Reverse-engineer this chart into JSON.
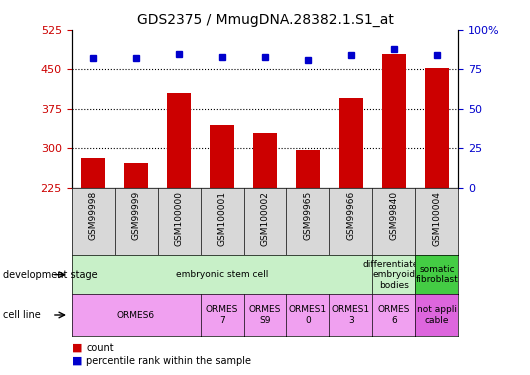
{
  "title": "GDS2375 / MmugDNA.28382.1.S1_at",
  "samples": [
    "GSM99998",
    "GSM99999",
    "GSM100000",
    "GSM100001",
    "GSM100002",
    "GSM99965",
    "GSM99966",
    "GSM99840",
    "GSM100004"
  ],
  "counts": [
    282,
    272,
    405,
    345,
    328,
    296,
    395,
    480,
    452
  ],
  "percentiles": [
    82,
    82,
    85,
    83,
    83,
    81,
    84,
    88,
    84
  ],
  "ylim_left": [
    225,
    525
  ],
  "ylim_right": [
    0,
    100
  ],
  "yticks_left": [
    225,
    300,
    375,
    450,
    525
  ],
  "yticks_right": [
    0,
    25,
    50,
    75,
    100
  ],
  "ytick_labels_right": [
    "0",
    "25",
    "50",
    "75",
    "100%"
  ],
  "bar_color": "#cc0000",
  "dot_color": "#0000cc",
  "grid_yticks": [
    300,
    375,
    450
  ],
  "dev_stage_cells": [
    {
      "text": "embryonic stem cell",
      "span": [
        0,
        7
      ],
      "color": "#c8f0c8"
    },
    {
      "text": "differentiated\nembryoid\nbodies",
      "span": [
        7,
        8
      ],
      "color": "#c8f0c8"
    },
    {
      "text": "somatic\nfibroblast",
      "span": [
        8,
        9
      ],
      "color": "#44cc44"
    }
  ],
  "cell_line_cells": [
    {
      "text": "ORMES6",
      "span": [
        0,
        3
      ],
      "color": "#f0a0f0"
    },
    {
      "text": "ORMES\n7",
      "span": [
        3,
        4
      ],
      "color": "#f0a0f0"
    },
    {
      "text": "ORMES\nS9",
      "span": [
        4,
        5
      ],
      "color": "#f0a0f0"
    },
    {
      "text": "ORMES1\n0",
      "span": [
        5,
        6
      ],
      "color": "#f0a0f0"
    },
    {
      "text": "ORMES1\n3",
      "span": [
        6,
        7
      ],
      "color": "#f0a0f0"
    },
    {
      "text": "ORMES\n6",
      "span": [
        7,
        8
      ],
      "color": "#f0a0f0"
    },
    {
      "text": "not appli\ncable",
      "span": [
        8,
        9
      ],
      "color": "#dd66dd"
    }
  ],
  "xtick_bg": "#d8d8d8",
  "axis_color_left": "#cc0000",
  "axis_color_right": "#0000cc",
  "label_fontsize": 7,
  "tick_fontsize": 8,
  "title_fontsize": 10
}
